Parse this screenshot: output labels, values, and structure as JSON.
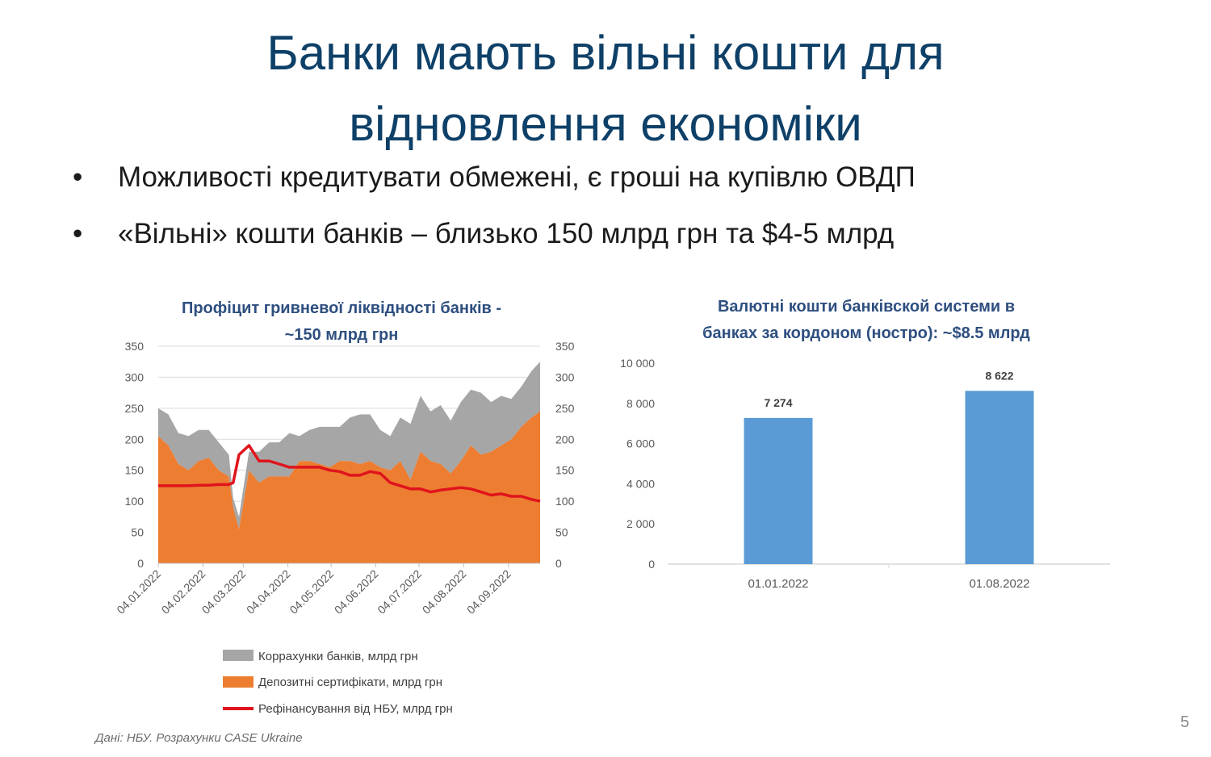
{
  "slide": {
    "title_line1": "Банки мають вільні кошти для",
    "title_line2": "відновлення економіки",
    "bullets": [
      "Можливості кредитувати обмежені, є гроші на купівлю ОВДП",
      "«Вільні» кошти банків – близько 150 млрд грн та $4-5 млрд"
    ],
    "bullet_symbol": "•",
    "page_number": "5",
    "source": "Дані: НБУ. Розрахунки CASE Ukraine"
  },
  "colors": {
    "title": "#0e4068",
    "chart_title": "#2e4f80",
    "korrakhunky": "#a6a6a6",
    "deposit_certificates": "#ed7d31",
    "refinancing": "#e0141c",
    "bars": "#5b9bd5"
  },
  "chart_data": [
    {
      "type": "area",
      "title_line1": "Профіцит гривневої ліквідності банків -",
      "title_line2": "~150 млрд грн",
      "ylim": [
        0,
        350
      ],
      "yticks": [
        0,
        50,
        100,
        150,
        200,
        250,
        300,
        350
      ],
      "secondary_yticks": [
        0,
        50,
        100,
        150,
        200,
        250,
        300,
        350
      ],
      "xticks": [
        "04.01.2022",
        "04.02.2022",
        "04.03.2022",
        "04.04.2022",
        "04.05.2022",
        "04.06.2022",
        "04.07.2022",
        "04.08.2022",
        "04.09.2022"
      ],
      "legend_position": "bottom",
      "x": [
        "2022-01-04",
        "2022-01-11",
        "2022-01-18",
        "2022-01-25",
        "2022-02-01",
        "2022-02-08",
        "2022-02-15",
        "2022-02-22",
        "2022-02-25",
        "2022-03-01",
        "2022-03-08",
        "2022-03-15",
        "2022-03-22",
        "2022-03-29",
        "2022-04-05",
        "2022-04-12",
        "2022-04-19",
        "2022-04-26",
        "2022-05-03",
        "2022-05-10",
        "2022-05-17",
        "2022-05-24",
        "2022-05-31",
        "2022-06-07",
        "2022-06-14",
        "2022-06-21",
        "2022-06-28",
        "2022-07-05",
        "2022-07-12",
        "2022-07-19",
        "2022-07-26",
        "2022-08-02",
        "2022-08-09",
        "2022-08-16",
        "2022-08-23",
        "2022-08-30",
        "2022-09-06",
        "2022-09-13",
        "2022-09-20",
        "2022-09-26"
      ],
      "series": [
        {
          "name": "Коррахунки банків, млрд грн",
          "kind": "stacked-area",
          "values": [
            45,
            50,
            50,
            55,
            50,
            45,
            45,
            35,
            15,
            20,
            30,
            50,
            55,
            55,
            70,
            40,
            50,
            60,
            65,
            55,
            70,
            80,
            75,
            60,
            55,
            70,
            90,
            90,
            80,
            95,
            85,
            95,
            90,
            100,
            80,
            80,
            65,
            65,
            75,
            80
          ]
        },
        {
          "name": "Депозитні сертифікати, млрд грн",
          "kind": "stacked-area",
          "values": [
            205,
            190,
            160,
            150,
            165,
            170,
            150,
            140,
            90,
            55,
            150,
            130,
            140,
            140,
            140,
            165,
            165,
            160,
            155,
            165,
            165,
            160,
            165,
            155,
            150,
            165,
            135,
            180,
            165,
            160,
            145,
            165,
            190,
            175,
            180,
            190,
            200,
            220,
            235,
            245
          ]
        },
        {
          "name": "Рефінансування від НБУ, млрд грн",
          "kind": "line",
          "values": [
            125,
            125,
            125,
            125,
            126,
            126,
            127,
            127,
            130,
            175,
            190,
            165,
            165,
            160,
            155,
            155,
            155,
            155,
            150,
            148,
            142,
            142,
            148,
            145,
            130,
            125,
            120,
            120,
            115,
            118,
            120,
            122,
            120,
            115,
            110,
            112,
            108,
            108,
            103,
            100
          ]
        }
      ]
    },
    {
      "type": "bar",
      "title_line1": "Валютні кошти банківской системи в",
      "title_line2": "банках за кордоном (ностро):  ~$8.5 млрд",
      "categories": [
        "01.01.2022",
        "01.08.2022"
      ],
      "values": [
        7274,
        8622
      ],
      "value_labels": [
        "7 274",
        "8 622"
      ],
      "ylim": [
        0,
        10000
      ],
      "yticks": [
        0,
        2000,
        4000,
        6000,
        8000,
        10000
      ],
      "ytick_labels": [
        "0",
        "2 000",
        "4 000",
        "6 000",
        "8 000",
        "10 000"
      ]
    }
  ]
}
